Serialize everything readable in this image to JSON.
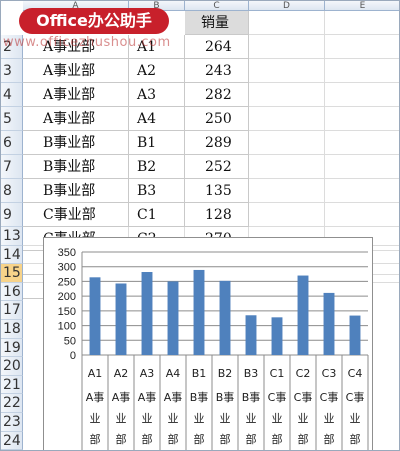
{
  "sheet": {
    "columns": [
      "A",
      "B",
      "C",
      "D",
      "E"
    ],
    "header": {
      "row": "2",
      "division": "A事业部",
      "item": "A1",
      "sales_label": "销量",
      "value": "264"
    },
    "rows": [
      {
        "row": "3",
        "division": "A事业部",
        "item": "A2",
        "value": "243"
      },
      {
        "row": "4",
        "division": "A事业部",
        "item": "A3",
        "value": "282"
      },
      {
        "row": "5",
        "division": "A事业部",
        "item": "A4",
        "value": "250"
      },
      {
        "row": "6",
        "division": "B事业部",
        "item": "B1",
        "value": "289"
      },
      {
        "row": "7",
        "division": "B事业部",
        "item": "B2",
        "value": "252"
      },
      {
        "row": "8",
        "division": "B事业部",
        "item": "B3",
        "value": "135"
      },
      {
        "row": "9",
        "division": "C事业部",
        "item": "C1",
        "value": "128"
      },
      {
        "row": "10",
        "division": "C事业部",
        "item": "C2",
        "value": "270"
      },
      {
        "row": "11",
        "division": "C事业部",
        "item": "C3",
        "value": "211"
      },
      {
        "row": "12",
        "division": "C事业部",
        "item": "C4",
        "value": "134"
      }
    ],
    "empty_rows": [
      "13",
      "14",
      "15",
      "16",
      "17",
      "18",
      "19",
      "20",
      "21",
      "22",
      "23",
      "24"
    ],
    "selected_row": "15"
  },
  "logo": {
    "text": "Office办公助手",
    "watermark": "www.officezhushou.com"
  },
  "colors": {
    "bar": "#4f81bd",
    "logo_bg": "#c8202b",
    "selected_row": "#f7d38a"
  },
  "chart_data": {
    "type": "bar",
    "categories": [
      "A1",
      "A2",
      "A3",
      "A4",
      "B1",
      "B2",
      "B3",
      "C1",
      "C2",
      "C3",
      "C4"
    ],
    "groups": [
      "A事业部",
      "A事业部",
      "A事业部",
      "A事业部",
      "B事业部",
      "B事业部",
      "B事业部",
      "C事业部",
      "C事业部",
      "C事业部",
      "C事业部"
    ],
    "values": [
      264,
      243,
      282,
      250,
      289,
      252,
      135,
      128,
      270,
      211,
      134
    ],
    "yticks": [
      0,
      50,
      100,
      150,
      200,
      250,
      300,
      350
    ],
    "ylim": [
      0,
      350
    ],
    "grid": true,
    "legend": "none",
    "title": "",
    "xlabel": "",
    "ylabel": ""
  }
}
